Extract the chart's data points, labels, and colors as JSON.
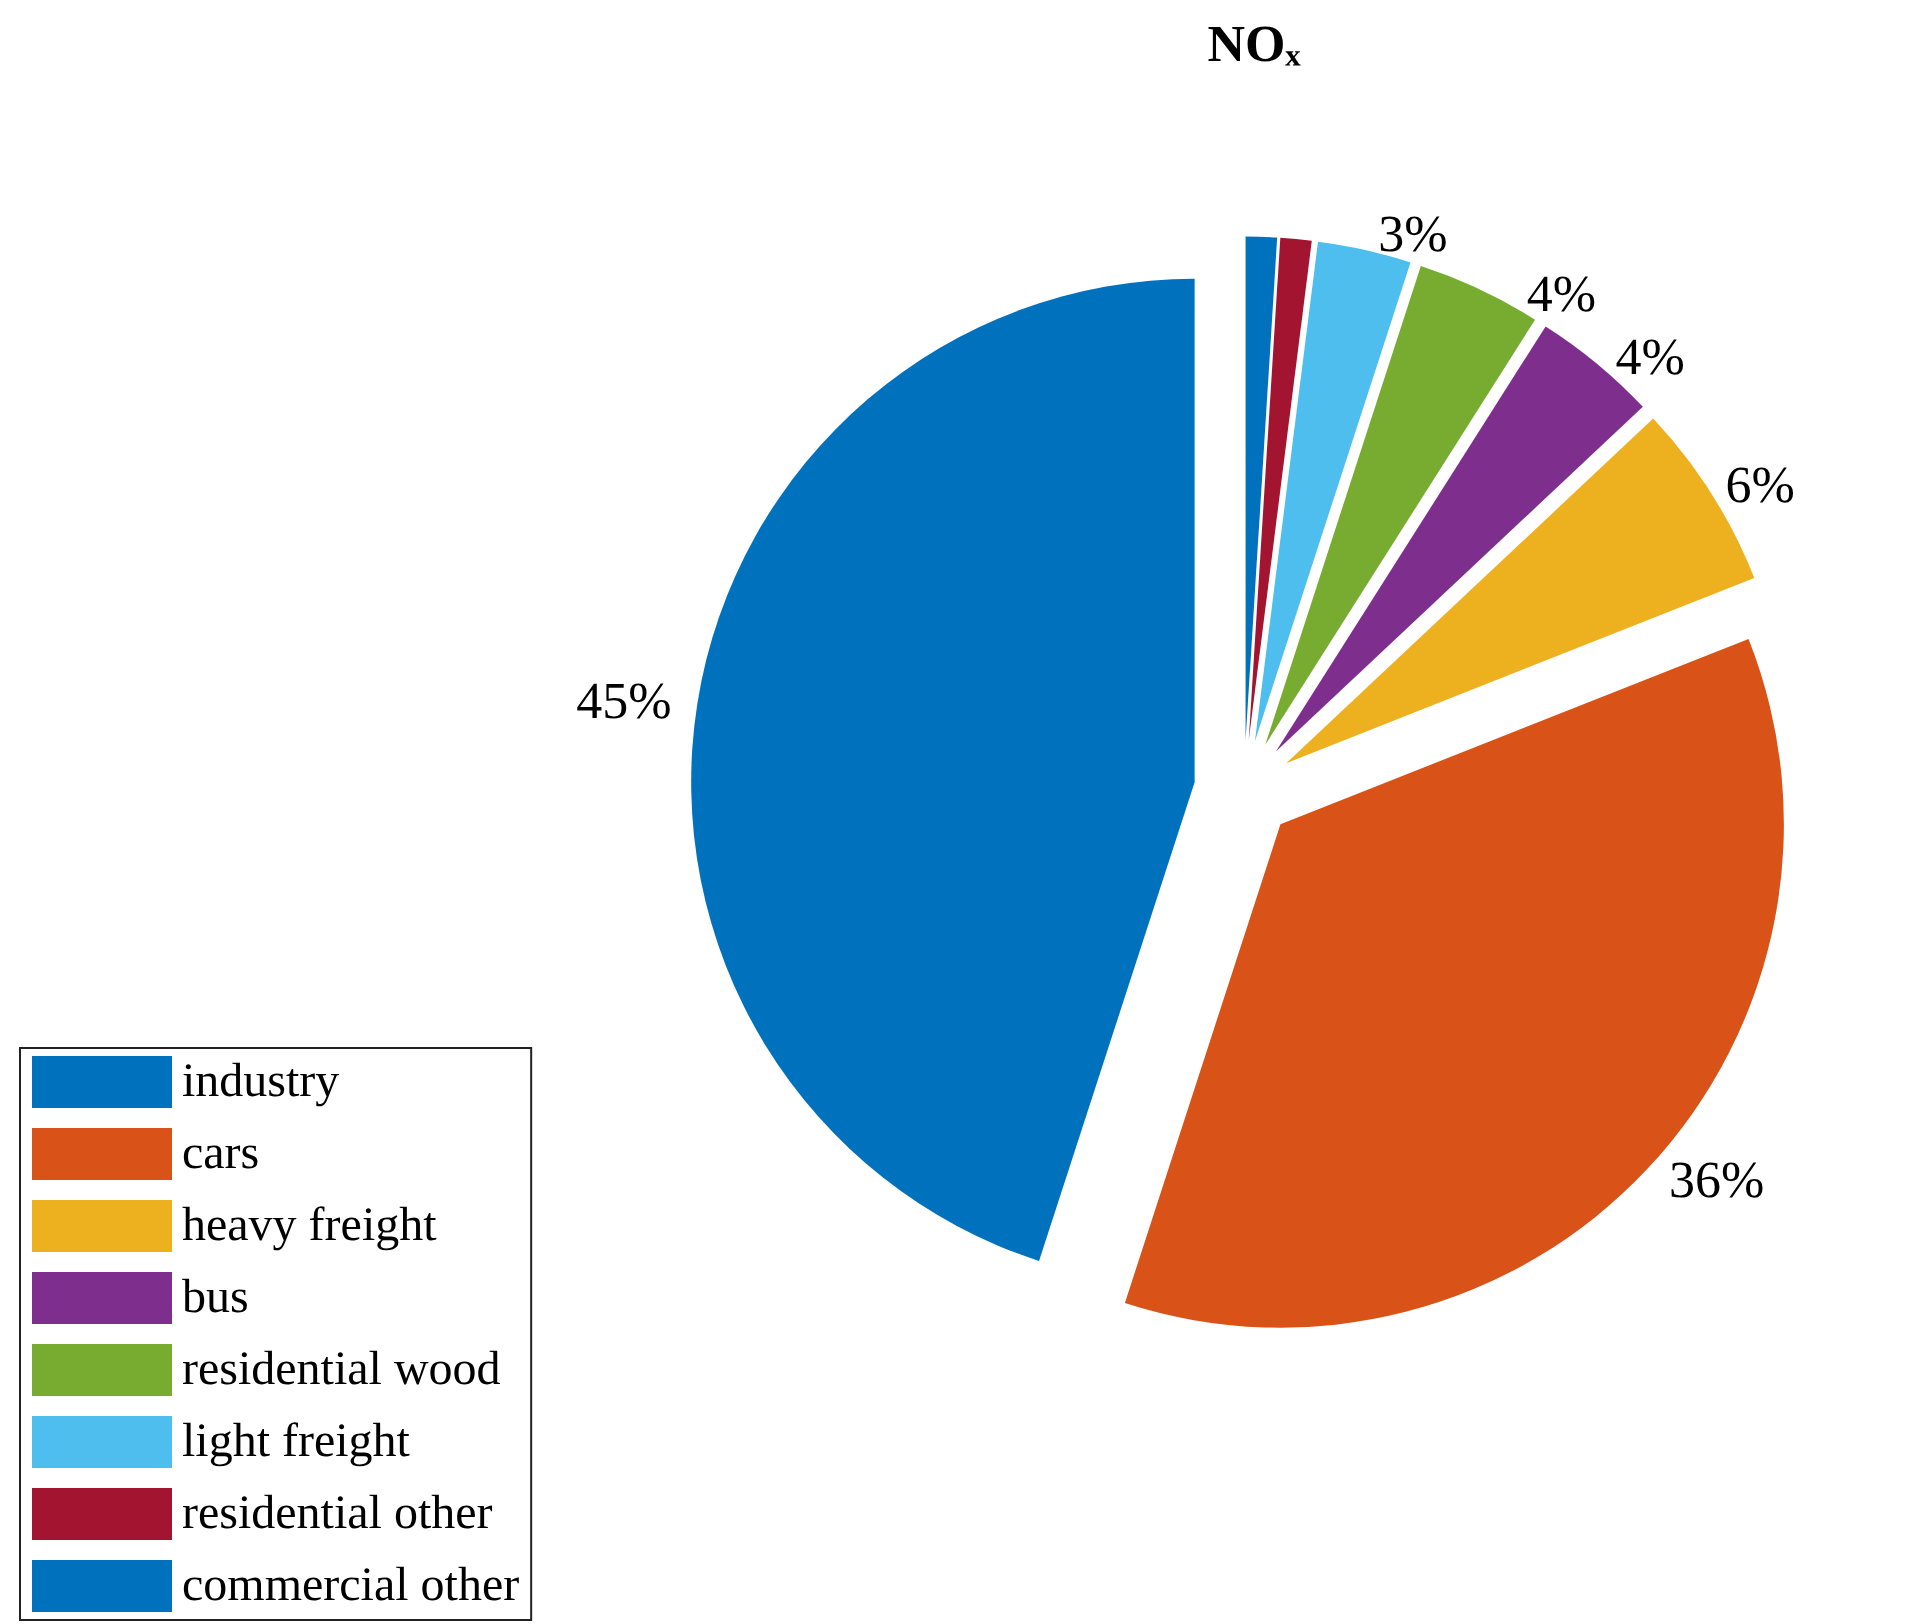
{
  "chart_data": {
    "type": "pie",
    "title": "NOₓ",
    "categories": [
      "industry",
      "cars",
      "heavy freight",
      "bus",
      "residential wood",
      "light freight",
      "residential other",
      "commercial other"
    ],
    "values": [
      45,
      36,
      6,
      4,
      4,
      3,
      1,
      1
    ],
    "value_labels": [
      "45%",
      "36%",
      "6%",
      "4%",
      "4%",
      "3%",
      null,
      null
    ],
    "colors": [
      "#0072bd",
      "#d95319",
      "#edb120",
      "#7e2f8e",
      "#77ac30",
      "#4dbeee",
      "#a2142f",
      "#0072bd"
    ],
    "legend": "bottom left"
  }
}
